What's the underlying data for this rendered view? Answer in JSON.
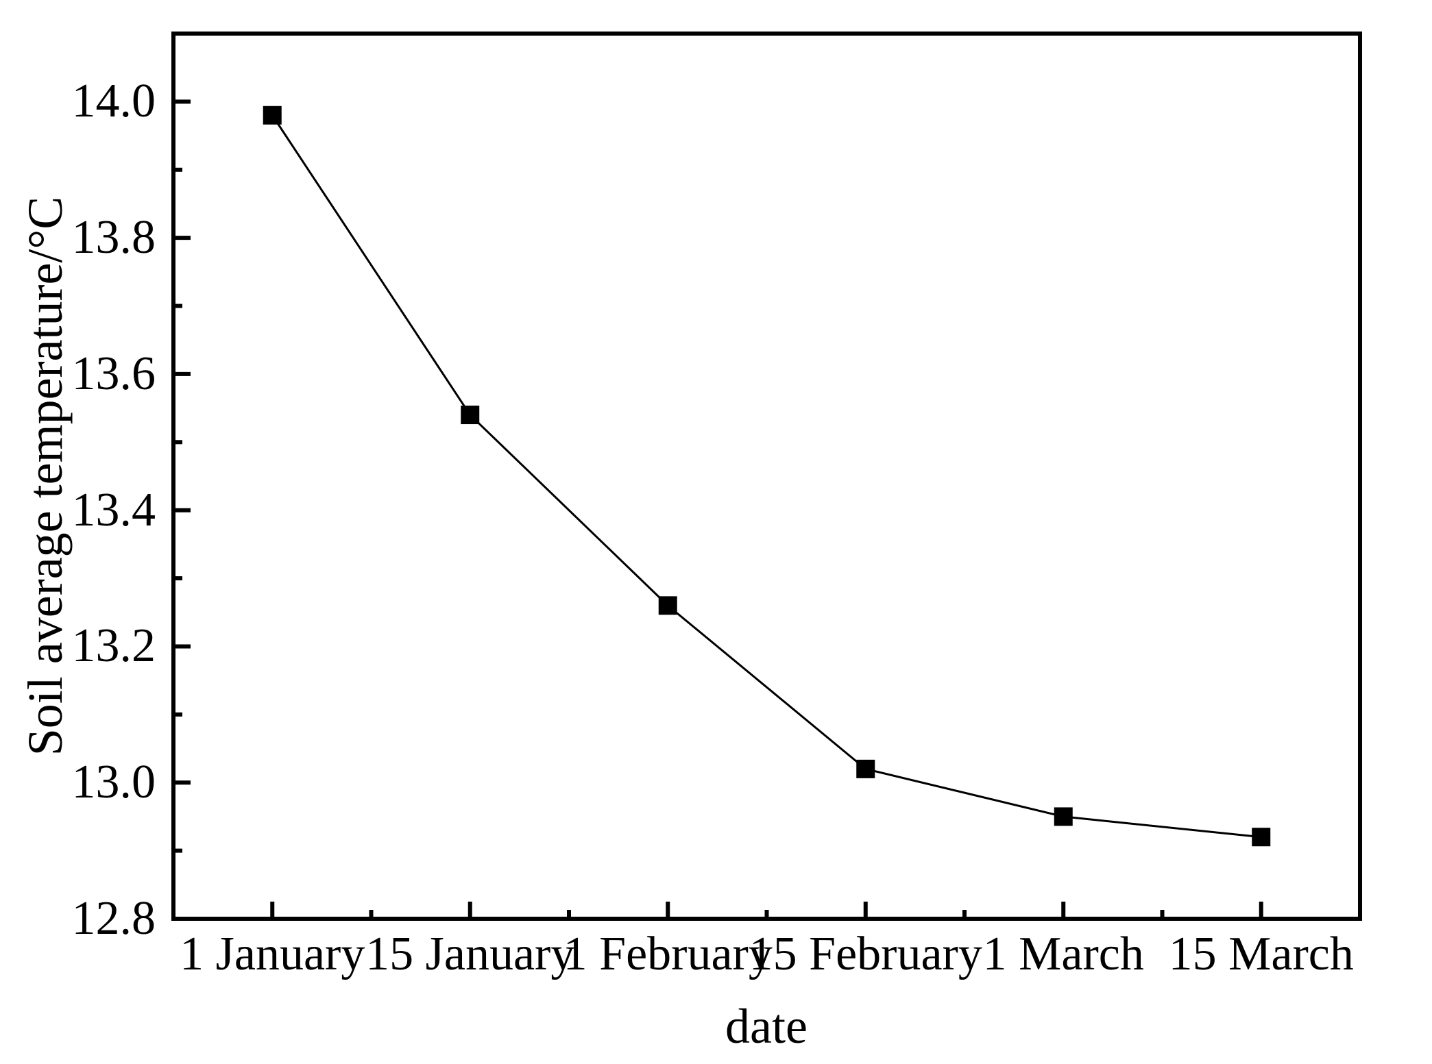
{
  "figure": {
    "background_color": "#ffffff",
    "ink_color": "#000000"
  },
  "chart_data": {
    "type": "line",
    "title": "",
    "xlabel": "date",
    "ylabel": "Soil average temperature/°C",
    "categories": [
      "1 January",
      "15 January",
      "1 February",
      "15 February",
      "1 March",
      "15 March"
    ],
    "values": [
      13.98,
      13.54,
      13.26,
      13.02,
      12.95,
      12.92
    ],
    "ylim": [
      12.8,
      14.1
    ],
    "y_major_ticks": [
      14.0,
      13.8,
      13.6,
      13.4,
      13.2,
      13.0,
      12.8
    ],
    "y_major_tick_labels": [
      "14.0",
      "13.8",
      "13.6",
      "13.4",
      "13.2",
      "13.0",
      "12.8"
    ],
    "y_minor_ticks": [
      13.9,
      13.7,
      13.5,
      13.3,
      13.1,
      12.9
    ],
    "marker": "filled-square",
    "marker_color": "#000000",
    "line_color": "#000000",
    "grid": false,
    "legend_position": "none"
  }
}
